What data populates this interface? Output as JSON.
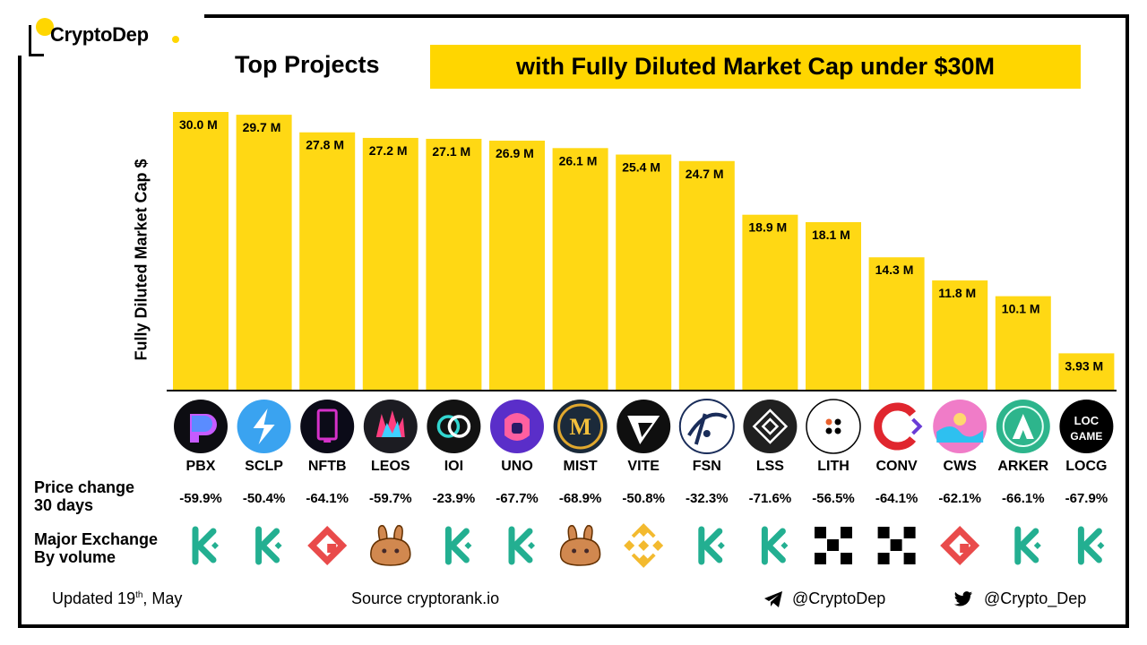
{
  "brand": {
    "name": "CryptoDep"
  },
  "title": {
    "left": "Top Projects",
    "right": "with Fully Diluted Market Cap under $30M"
  },
  "labels": {
    "price_change": "Price change\n30 days",
    "major_exchange": "Major Exchange\nBy volume"
  },
  "footer": {
    "updated_prefix": "Updated 19",
    "updated_sup": "th",
    "updated_suffix": ", May",
    "source": "Source  cryptorank.io",
    "telegram": "@CryptoDep",
    "twitter": "@Crypto_Dep"
  },
  "colors": {
    "accent": "#FFD600",
    "bar": "#FFD814",
    "kucoin": "#23AF91",
    "gate": "#E94B4B",
    "pancake": "#D1884F",
    "binance": "#F3BA2F",
    "okx": "#000000"
  },
  "chart_data": {
    "type": "bar",
    "ylabel": "Fully Diluted Market Cap $",
    "categories": [
      "PBX",
      "SCLP",
      "NFTB",
      "LEOS",
      "IOI",
      "UNO",
      "MIST",
      "VITE",
      "FSN",
      "LSS",
      "LITH",
      "CONV",
      "CWS",
      "ARKER",
      "LOCG"
    ],
    "values": [
      30.0,
      29.7,
      27.8,
      27.2,
      27.1,
      26.9,
      26.1,
      25.4,
      24.7,
      18.9,
      18.1,
      14.3,
      11.8,
      10.1,
      3.93
    ],
    "data_labels": [
      "30.0 M",
      "29.7 M",
      "27.8 M",
      "27.2 M",
      "27.1 M",
      "26.9 M",
      "26.1 M",
      "25.4 M",
      "24.7 M",
      "18.9 M",
      "18.1 M",
      "14.3 M",
      "11.8 M",
      "10.1 M",
      "3.93 M"
    ],
    "price_change_30d": [
      "-59.9%",
      "-50.4%",
      "-64.1%",
      "-59.7%",
      "-23.9%",
      "-67.7%",
      "-68.9%",
      "-50.8%",
      "-32.3%",
      "-71.6%",
      "-56.5%",
      "-64.1%",
      "-62.1%",
      "-66.1%",
      "-67.9%"
    ],
    "major_exchange": [
      "kucoin",
      "kucoin",
      "gate",
      "pancakeswap",
      "kucoin",
      "kucoin",
      "pancakeswap",
      "binance",
      "kucoin",
      "kucoin",
      "okx",
      "okx",
      "gate",
      "kucoin",
      "kucoin"
    ],
    "project_icons": [
      "pbx-icon",
      "sclp-icon",
      "nftb-icon",
      "leos-icon",
      "ioi-icon",
      "uno-icon",
      "mist-icon",
      "vite-icon",
      "fsn-icon",
      "lss-icon",
      "lith-icon",
      "conv-icon",
      "cws-icon",
      "arker-icon",
      "locg-icon"
    ],
    "locg_icon_text": [
      "LOC",
      "GAME"
    ],
    "ylim": [
      0,
      30
    ],
    "grid": false,
    "legend": "none"
  }
}
